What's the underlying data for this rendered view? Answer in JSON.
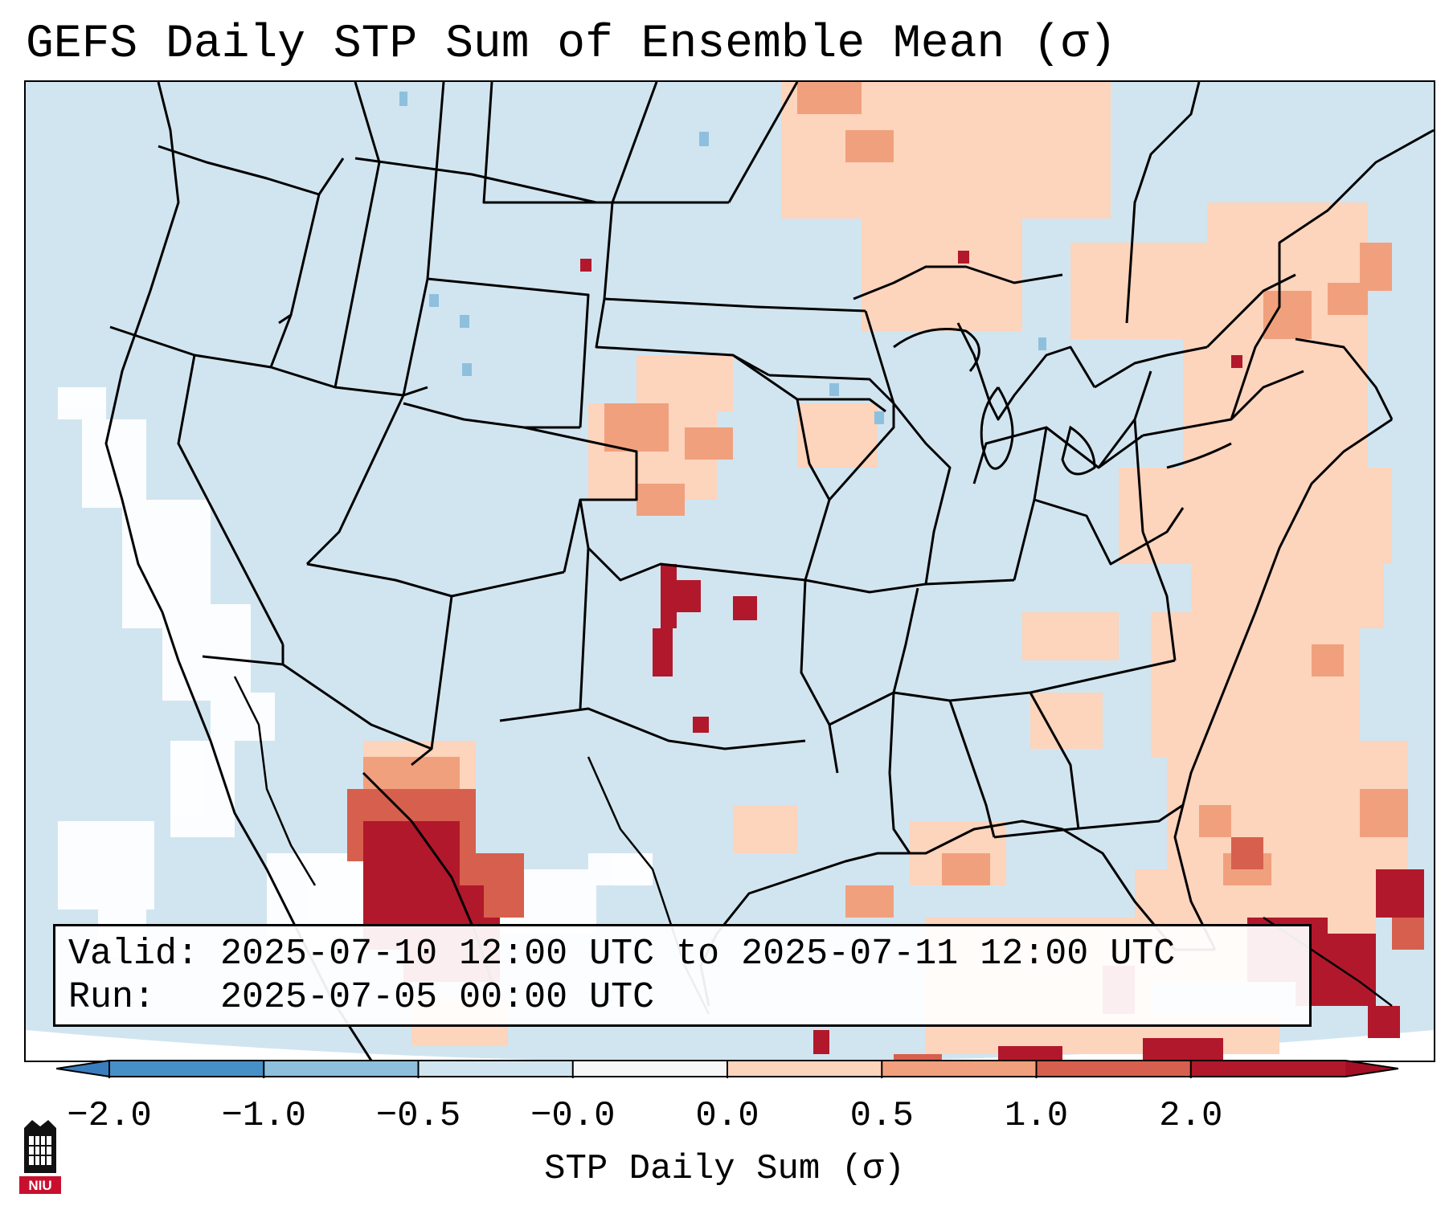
{
  "title": "GEFS Daily STP Sum of Ensemble Mean (σ)",
  "info": {
    "valid_label": "Valid:",
    "valid_text": "2025-07-10 12:00 UTC to 2025-07-11 12:00 UTC",
    "run_label": "Run:  ",
    "run_text": "2025-07-05 00:00 UTC"
  },
  "colorbar": {
    "label": "STP Daily Sum (σ)",
    "ticks": [
      "−2.0",
      "−1.0",
      "−0.5",
      "−0.0",
      "0.0",
      "0.5",
      "1.0",
      "2.0"
    ],
    "bin_colors": [
      "#4590c6",
      "#8ec0de",
      "#d1e5f0",
      "#f7f7f7",
      "#fdd4bc",
      "#f1a07d",
      "#d6604d",
      "#b2182b"
    ],
    "under_color": "#3a7dbe",
    "over_color": "#a50f25"
  },
  "logo": {
    "name": "niu-logo",
    "text": "NIU"
  }
}
